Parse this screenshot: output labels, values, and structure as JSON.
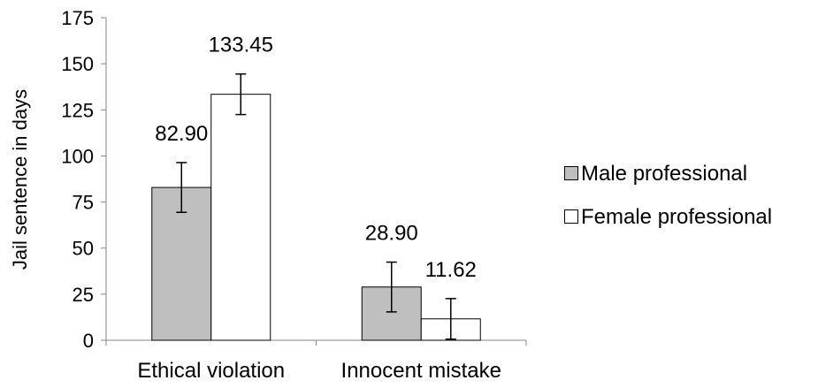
{
  "chart_data": {
    "type": "bar",
    "title": "",
    "xlabel": "",
    "ylabel": "Jail sentence in days",
    "categories": [
      "Ethical violation",
      "Innocent mistake"
    ],
    "series": [
      {
        "name": "Male professional",
        "color": "#bfbfbf",
        "values": [
          82.9,
          28.9
        ],
        "value_labels": [
          "82.90",
          "28.90"
        ],
        "error": [
          13.5,
          13.5
        ]
      },
      {
        "name": "Female professional",
        "color": "#ffffff",
        "values": [
          133.45,
          11.62
        ],
        "value_labels": [
          "133.45",
          "11.62"
        ],
        "error": [
          11.0,
          11.0
        ]
      }
    ],
    "ylim": [
      0,
      175
    ],
    "yticks": [
      0,
      25,
      50,
      75,
      100,
      125,
      150,
      175
    ],
    "grid": false,
    "legend_position": "right"
  }
}
